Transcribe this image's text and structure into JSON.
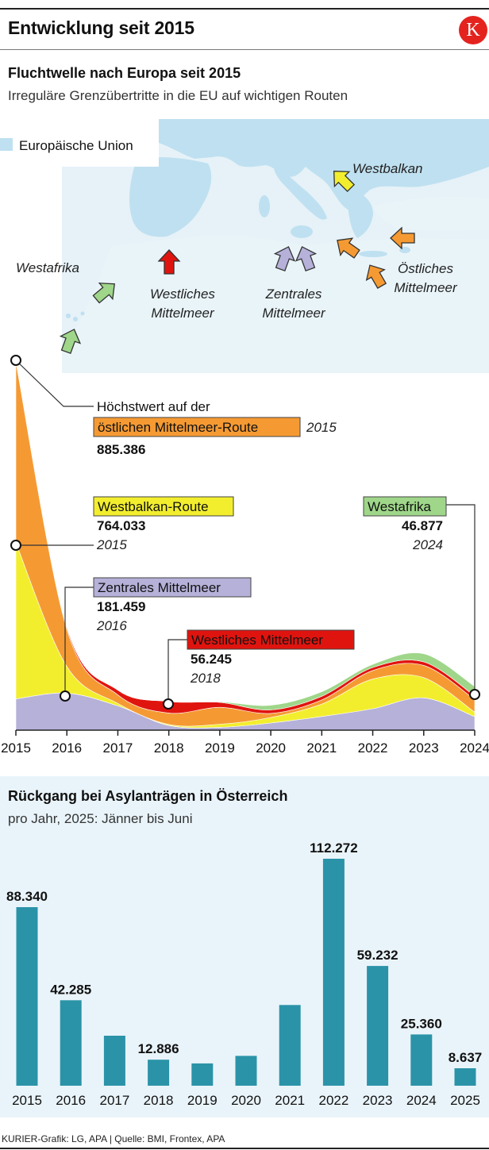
{
  "header": {
    "title": "Entwicklung seit 2015",
    "logo_letter": "K",
    "logo_color": "#e4231f"
  },
  "map": {
    "title": "Fluchtwelle nach Europa seit 2015",
    "subtitle": "Irreguläre Grenzübertritte in die EU auf wichtigen Routen",
    "legend_label": "Europäische Union",
    "routes": [
      {
        "name": "Westbalkan",
        "color": "#f2ee2e",
        "icon": "arrow-icon"
      },
      {
        "name": "Östliches Mittelmeer",
        "color": "#f59a33",
        "icon": "arrow-icon"
      },
      {
        "name": "Zentrales Mittelmeer",
        "color": "#b5b1d9",
        "icon": "arrow-icon"
      },
      {
        "name": "Westliches Mittelmeer",
        "color": "#e0140f",
        "icon": "arrow-icon"
      },
      {
        "name": "Westafrika",
        "color": "#9fd68a",
        "icon": "arrow-icon"
      }
    ],
    "labels": {
      "westafrika": "Westafrika",
      "west_med": [
        "Westliches",
        "Mittelmeer"
      ],
      "central_med": [
        "Zentrales",
        "Mittelmeer"
      ],
      "east_med": [
        "Östliches",
        "Mittelmeer"
      ],
      "westbalkan": "Westbalkan"
    },
    "colors": {
      "eu": "#bfe0f0",
      "land": "#e6f2f8",
      "sea": "#ffffff"
    }
  },
  "chart_data": [
    {
      "type": "area",
      "stacked": true,
      "x": [
        2015,
        2016,
        2017,
        2018,
        2019,
        2020,
        2021,
        2022,
        2023,
        2024
      ],
      "series": [
        {
          "name": "Zentrales Mittelmeer",
          "color": "#b5b1d9",
          "values": [
            153000,
            181459,
            119000,
            23000,
            14000,
            35000,
            67000,
            105000,
            158000,
            66000
          ]
        },
        {
          "name": "Westbalkan-Route",
          "color": "#f2ee2e",
          "values": [
            764033,
            130000,
            12000,
            5000,
            15000,
            27000,
            61000,
            145000,
            99000,
            22000
          ]
        },
        {
          "name": "östlichen Mittelmeer-Route",
          "color": "#f59a33",
          "values": [
            885386,
            182000,
            42000,
            56000,
            83000,
            20000,
            20000,
            42000,
            60000,
            62000
          ]
        },
        {
          "name": "Westliches Mittelmeer",
          "color": "#e0140f",
          "values": [
            7000,
            10000,
            23000,
            56245,
            24000,
            17000,
            18000,
            15000,
            17000,
            17000
          ]
        },
        {
          "name": "Westafrika",
          "color": "#9fd68a",
          "values": [
            900,
            700,
            400,
            1300,
            2700,
            23000,
            22000,
            15000,
            40000,
            46877
          ]
        }
      ],
      "annotations": [
        {
          "label_line1": "Höchstwert auf der",
          "label_box": "östlichen Mittelmeer-Route",
          "value": "885.386",
          "year": "2015",
          "box_color": "#f59a33"
        },
        {
          "label_box": "Westbalkan-Route",
          "value": "764.033",
          "year": "2015",
          "box_color": "#f2ee2e"
        },
        {
          "label_box": "Westafrika",
          "value": "46.877",
          "year": "2024",
          "box_color": "#9fd68a"
        },
        {
          "label_box": "Zentrales Mittelmeer",
          "value": "181.459",
          "year": "2016",
          "box_color": "#b5b1d9"
        },
        {
          "label_box": "Westliches Mittelmeer",
          "value": "56.245",
          "year": "2018",
          "box_color": "#e0140f"
        }
      ],
      "xticks": [
        "2015",
        "2016",
        "2017",
        "2018",
        "2019",
        "2020",
        "2021",
        "2022",
        "2023",
        "2024"
      ]
    },
    {
      "type": "bar",
      "title": "Rückgang bei Asylanträgen in Österreich",
      "subtitle": "pro Jahr, 2025: Jänner bis Juni",
      "categories": [
        "2015",
        "2016",
        "2017",
        "2018",
        "2019",
        "2020",
        "2021",
        "2022",
        "2023",
        "2024",
        "2025"
      ],
      "values": [
        88340,
        42285,
        24735,
        12886,
        11012,
        14775,
        39930,
        112272,
        59232,
        25360,
        8637
      ],
      "labels": [
        "88.340",
        "42.285",
        "",
        "12.886",
        "",
        "",
        "",
        "112.272",
        "59.232",
        "25.360",
        "8.637"
      ],
      "color": "#2b93a8",
      "ylim": [
        0,
        112272
      ]
    }
  ],
  "footer": {
    "source": "KURIER-Grafik: LG, APA | Quelle: BMI, Frontex, APA"
  }
}
